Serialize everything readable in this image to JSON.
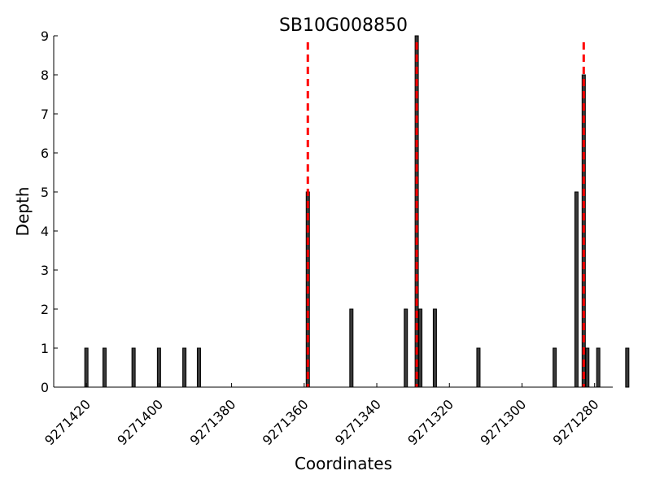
{
  "chart_data": {
    "type": "bar",
    "title": "SB10G008850",
    "xlabel": "Coordinates",
    "ylabel": "Depth",
    "x_reversed": true,
    "xlim": [
      9271429,
      9271275
    ],
    "ylim": [
      0,
      9
    ],
    "xticks": [
      9271420,
      9271400,
      9271380,
      9271360,
      9271340,
      9271320,
      9271300,
      9271280
    ],
    "yticks": [
      0,
      1,
      2,
      3,
      4,
      5,
      6,
      7,
      8,
      9
    ],
    "bars": [
      {
        "x": 9271420,
        "value": 1
      },
      {
        "x": 9271415,
        "value": 1
      },
      {
        "x": 9271407,
        "value": 1
      },
      {
        "x": 9271400,
        "value": 1
      },
      {
        "x": 9271393,
        "value": 1
      },
      {
        "x": 9271389,
        "value": 1
      },
      {
        "x": 9271359,
        "value": 5
      },
      {
        "x": 9271347,
        "value": 2
      },
      {
        "x": 9271332,
        "value": 2
      },
      {
        "x": 9271329,
        "value": 9
      },
      {
        "x": 9271328,
        "value": 2
      },
      {
        "x": 9271324,
        "value": 2
      },
      {
        "x": 9271312,
        "value": 1
      },
      {
        "x": 9271291,
        "value": 1
      },
      {
        "x": 9271285,
        "value": 5
      },
      {
        "x": 9271283,
        "value": 8
      },
      {
        "x": 9271282,
        "value": 1
      },
      {
        "x": 9271279,
        "value": 1
      },
      {
        "x": 9271271,
        "value": 1
      }
    ],
    "markers": [
      9271359,
      9271329,
      9271283
    ],
    "colors": {
      "bar": "#3a3a3a",
      "marker": "#ff0000"
    }
  }
}
